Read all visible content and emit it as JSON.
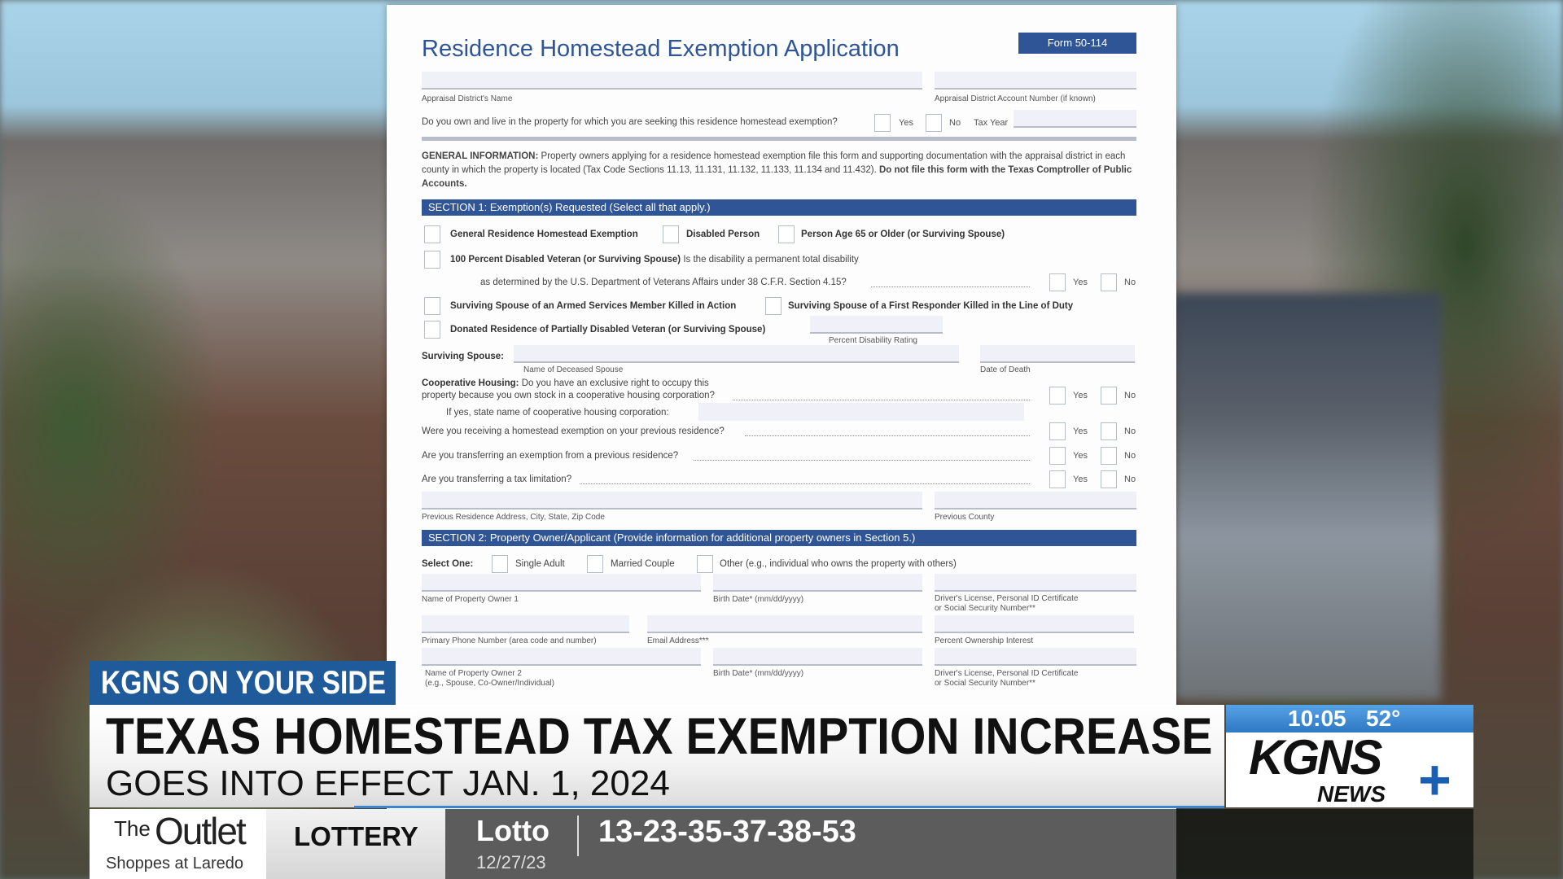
{
  "form": {
    "title": "Residence Homestead Exemption Application",
    "form_number": "Form 50-114",
    "appraisal_district_name": "Appraisal District's Name",
    "account_number": "Appraisal District Account Number (if known)",
    "own_live_question": "Do you own and live in the property for which you are seeking this residence homestead exemption?",
    "yes": "Yes",
    "no": "No",
    "tax_year": "Tax Year",
    "general_info_label": "GENERAL INFORMATION:",
    "general_info_text": "Property owners applying for a residence homestead exemption file this form and supporting documentation with the appraisal district in each county in which the property is located (Tax Code Sections 11.13, 11.131, 11.132, 11.133, 11.134 and 11.432).",
    "general_info_bold": "Do not file this form with the Texas Comptroller of Public Accounts.",
    "section1": "SECTION 1: Exemption(s) Requested (Select all that apply.)",
    "s1_general": "General Residence Homestead Exemption",
    "s1_disabled": "Disabled Person",
    "s1_age65": "Person Age 65 or Older (or Surviving Spouse)",
    "s1_veteran": "100 Percent Disabled Veteran (or Surviving Spouse)",
    "s1_veteran_q1": "Is the disability a permanent total disability",
    "s1_veteran_q2": "as determined by the U.S. Department of Veterans Affairs under 38 C.F.R. Section 4.15?",
    "s1_armed": "Surviving Spouse of an Armed Services Member Killed in Action",
    "s1_responder": "Surviving Spouse of a First Responder Killed in the Line of Duty",
    "s1_donated": "Donated Residence of Partially Disabled Veteran (or Surviving Spouse)",
    "percent_rating": "Percent Disability Rating",
    "surviving_spouse": "Surviving Spouse:",
    "deceased_name": "Name of Deceased Spouse",
    "date_of_death": "Date of Death",
    "coop_label": "Cooperative Housing:",
    "coop_q1": "Do you have an exclusive right to occupy this",
    "coop_q2": "property because you own stock in a cooperative housing corporation?",
    "coop_name": "If yes, state name of cooperative housing corporation:",
    "prev_exemption_q": "Were you receiving a homestead exemption on your previous residence?",
    "transfer_exemption_q": "Are you transferring an exemption from a previous residence?",
    "transfer_limit_q": "Are you transferring a tax limitation?",
    "prev_address": "Previous Residence Address, City, State, Zip Code",
    "prev_county": "Previous County",
    "section2": "SECTION 2: Property Owner/Applicant (Provide information for additional property owners in Section 5.)",
    "select_one": "Select One:",
    "single": "Single Adult",
    "married": "Married Couple",
    "other": "Other (e.g., individual who owns the property with others)",
    "owner1": "Name of Property Owner 1",
    "birth1": "Birth Date* (mm/dd/yyyy)",
    "dl1": "Driver's License, Personal ID Certificate",
    "dl1b": "or Social Security Number**",
    "phone": "Primary Phone Number (area code and number)",
    "email": "Email Address***",
    "percent_own": "Percent Ownership Interest",
    "owner2": "Name of Property Owner 2",
    "owner2b": "(e.g., Spouse, Co-Owner/Individual)",
    "birth2": "Birth Date* (mm/dd/yyyy)",
    "dl2": "Driver's License, Personal ID Certificate",
    "dl2b": "or Social Security Number**"
  },
  "lower_third": {
    "tag": "KGNS ON YOUR SIDE",
    "headline": "TEXAS HOMESTEAD TAX EXEMPTION INCREASE",
    "subheadline": "GOES INTO EFFECT JAN. 1, 2024",
    "time": "10:05",
    "temp": "52°",
    "logo_main": "KGNS",
    "logo_sub": "NEWS",
    "sponsor_line1": "The",
    "sponsor_line2": "Outlet",
    "sponsor_line3": "Shoppes at Laredo",
    "ticker_category": "LOTTERY",
    "game": "Lotto",
    "date": "12/27/23",
    "numbers": "13-23-35-37-38-53"
  },
  "colors": {
    "form_blue": "#2f5597",
    "tag_blue": "#1f5a9a",
    "time_blue": "#3a86d0",
    "logo_plus": "#1a5fb4"
  }
}
